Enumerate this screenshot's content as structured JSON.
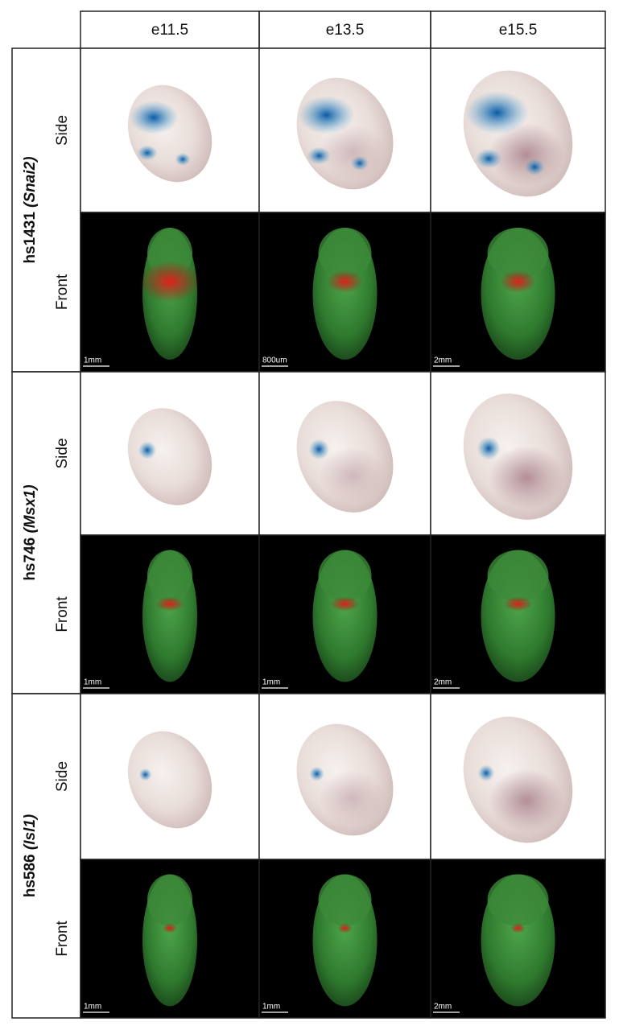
{
  "header": {
    "columns": [
      "e11.5",
      "e13.5",
      "e15.5"
    ]
  },
  "groups": [
    {
      "construct": "hs1431",
      "gene": "(Snai2)",
      "views": [
        "Side",
        "Front"
      ],
      "scale_bars": [
        "1mm",
        "800um",
        "2mm"
      ]
    },
    {
      "construct": "hs746",
      "gene": "(Msx1)",
      "views": [
        "Side",
        "Front"
      ],
      "scale_bars": [
        "1mm",
        "1mm",
        "2mm"
      ]
    },
    {
      "construct": "hs586",
      "gene": "(Isl1)",
      "views": [
        "Side",
        "Front"
      ],
      "scale_bars": [
        "1mm",
        "1mm",
        "2mm"
      ]
    }
  ]
}
